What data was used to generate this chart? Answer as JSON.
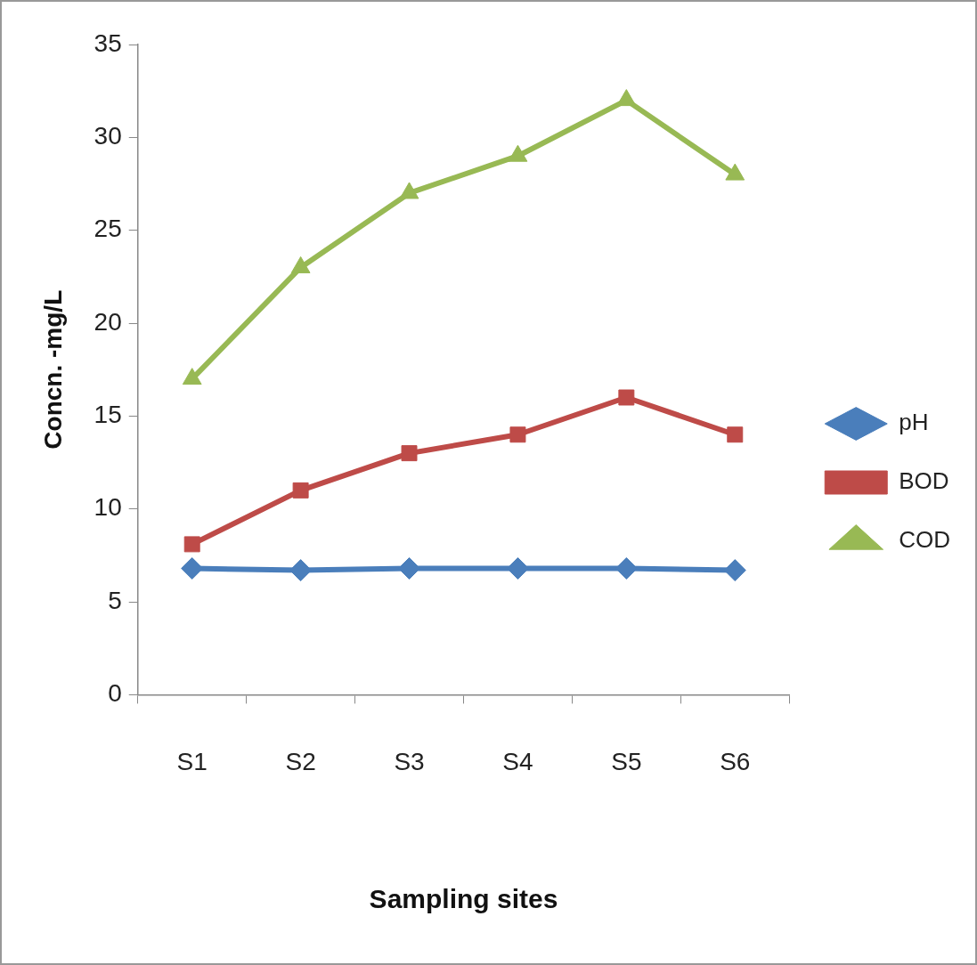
{
  "chart_data": {
    "type": "line",
    "xlabel": "Sampling sites",
    "ylabel": "Concn. -mg/L",
    "categories": [
      "S1",
      "S2",
      "S3",
      "S4",
      "S5",
      "S6"
    ],
    "series": [
      {
        "name": "pH",
        "color": "#4a7ebb",
        "marker": "diamond",
        "values": [
          6.8,
          6.7,
          6.8,
          6.8,
          6.8,
          6.7
        ]
      },
      {
        "name": "BOD",
        "color": "#be4b48",
        "marker": "square",
        "values": [
          8.1,
          11,
          13,
          14,
          16,
          14
        ]
      },
      {
        "name": "COD",
        "color": "#98b954",
        "marker": "triangle",
        "values": [
          17,
          23,
          27,
          29,
          32,
          28
        ]
      }
    ],
    "ylim": [
      0,
      35
    ],
    "yticks": [
      0,
      5,
      10,
      15,
      20,
      25,
      30,
      35
    ],
    "grid": false,
    "legend": "right"
  }
}
